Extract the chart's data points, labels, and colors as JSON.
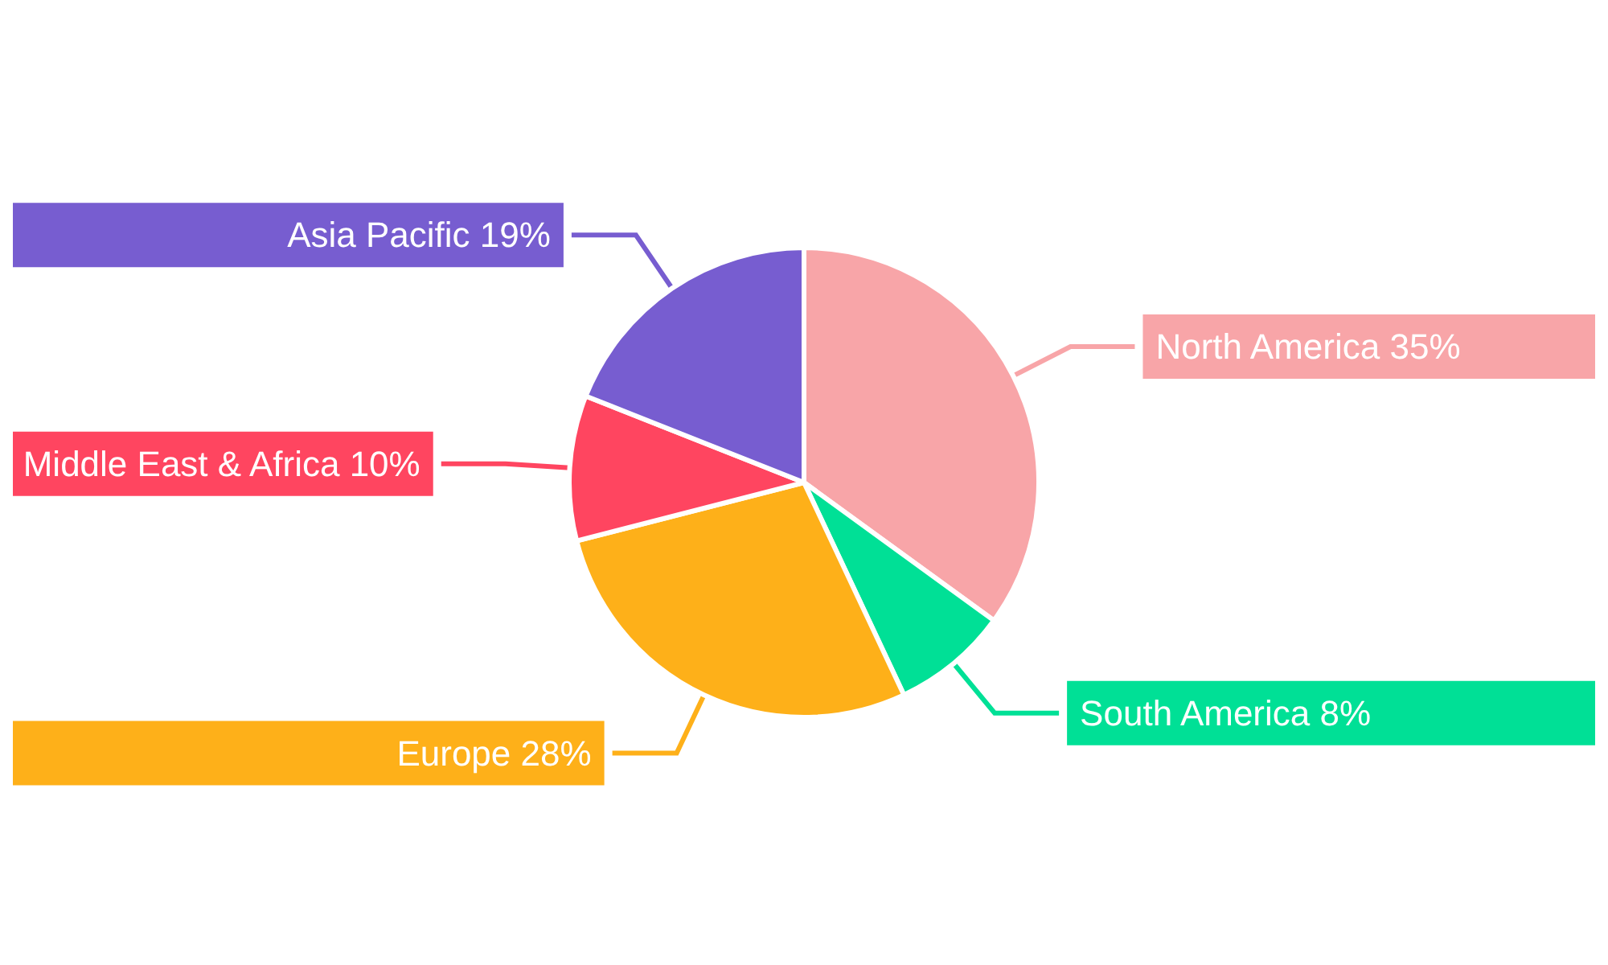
{
  "chart_data": {
    "type": "pie",
    "categories": [
      "North America",
      "South America",
      "Europe",
      "Middle East & Africa",
      "Asia Pacific"
    ],
    "values": [
      35,
      8,
      28,
      10,
      19
    ],
    "value_labels": [
      "35%",
      "8%",
      "28%",
      "10%",
      "19%"
    ],
    "colors": [
      "#f8a5a8",
      "#00e096",
      "#feb019",
      "#ff4560",
      "#775dd0"
    ],
    "legend": false
  }
}
